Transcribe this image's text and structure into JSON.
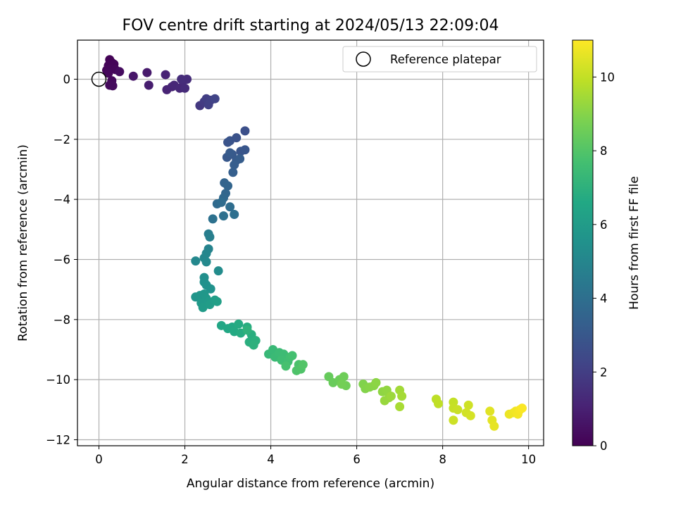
{
  "chart_data": {
    "type": "scatter",
    "title": "FOV centre drift starting at 2024/05/13 22:09:04",
    "xlabel": "Angular distance from reference (arcmin)",
    "ylabel": "Rotation from reference (arcmin)",
    "colorbar_label": "Hours from first FF file",
    "xlim": [
      -0.5,
      10.35
    ],
    "ylim": [
      -12.2,
      1.3
    ],
    "clim": [
      0,
      11
    ],
    "colormap": "viridis",
    "grid": true,
    "legend_position": "top-right",
    "xticks": [
      0,
      2,
      4,
      6,
      8,
      10
    ],
    "xtick_labels": [
      "0",
      "2",
      "4",
      "6",
      "8",
      "10"
    ],
    "yticks": [
      0,
      -2,
      -4,
      -6,
      -8,
      -10,
      -12
    ],
    "ytick_labels": [
      "0",
      "−2",
      "−4",
      "−6",
      "−8",
      "−10",
      "−12"
    ],
    "cticks": [
      0,
      2,
      4,
      6,
      8,
      10
    ],
    "ctick_labels": [
      "0",
      "2",
      "4",
      "6",
      "8",
      "10"
    ],
    "reference": {
      "name": "Reference platepar",
      "x": 0,
      "y": 0
    },
    "points": [
      [
        0.25,
        0.65,
        0.05
      ],
      [
        0.3,
        0.55,
        0.08
      ],
      [
        0.22,
        0.45,
        0.1
      ],
      [
        0.35,
        0.5,
        0.12
      ],
      [
        0.18,
        0.3,
        0.15
      ],
      [
        0.28,
        0.35,
        0.18
      ],
      [
        0.38,
        0.32,
        0.2
      ],
      [
        0.22,
        0.2,
        0.22
      ],
      [
        0.3,
        -0.05,
        0.25
      ],
      [
        0.25,
        -0.2,
        0.28
      ],
      [
        0.32,
        -0.22,
        0.3
      ],
      [
        0.48,
        0.25,
        0.35
      ],
      [
        0.8,
        0.1,
        0.7
      ],
      [
        1.12,
        0.22,
        0.8
      ],
      [
        1.16,
        -0.2,
        0.9
      ],
      [
        1.55,
        0.15,
        1.05
      ],
      [
        1.58,
        -0.35,
        1.1
      ],
      [
        1.7,
        -0.25,
        1.15
      ],
      [
        1.75,
        -0.2,
        1.2
      ],
      [
        1.88,
        -0.3,
        1.25
      ],
      [
        1.95,
        -0.05,
        1.3
      ],
      [
        2.0,
        -0.3,
        1.35
      ],
      [
        2.05,
        0.0,
        1.38
      ],
      [
        1.92,
        0.0,
        1.4
      ],
      [
        2.35,
        -0.88,
        1.8
      ],
      [
        2.45,
        -0.75,
        1.9
      ],
      [
        2.5,
        -0.65,
        2.0
      ],
      [
        2.55,
        -0.85,
        2.05
      ],
      [
        2.6,
        -0.7,
        2.1
      ],
      [
        2.7,
        -0.65,
        2.2
      ],
      [
        3.4,
        -1.72,
        2.7
      ],
      [
        3.2,
        -1.95,
        2.75
      ],
      [
        3.05,
        -2.05,
        2.8
      ],
      [
        3.0,
        -2.1,
        2.85
      ],
      [
        3.3,
        -2.4,
        2.9
      ],
      [
        3.4,
        -2.35,
        2.95
      ],
      [
        2.98,
        -2.6,
        3.0
      ],
      [
        3.1,
        -2.5,
        3.05
      ],
      [
        3.2,
        -2.7,
        3.1
      ],
      [
        3.05,
        -2.45,
        3.15
      ],
      [
        3.28,
        -2.65,
        3.2
      ],
      [
        3.15,
        -2.85,
        3.25
      ],
      [
        3.12,
        -3.1,
        3.3
      ],
      [
        2.92,
        -3.45,
        3.5
      ],
      [
        3.0,
        -3.55,
        3.55
      ],
      [
        2.95,
        -3.8,
        3.6
      ],
      [
        2.9,
        -3.95,
        3.7
      ],
      [
        2.75,
        -4.15,
        3.8
      ],
      [
        2.85,
        -4.1,
        3.85
      ],
      [
        3.05,
        -4.25,
        3.9
      ],
      [
        3.15,
        -4.5,
        4.0
      ],
      [
        2.9,
        -4.55,
        4.05
      ],
      [
        2.65,
        -4.65,
        4.1
      ],
      [
        2.55,
        -5.15,
        4.6
      ],
      [
        2.58,
        -5.25,
        4.7
      ],
      [
        2.55,
        -5.65,
        4.9
      ],
      [
        2.5,
        -5.8,
        5.0
      ],
      [
        2.45,
        -5.95,
        5.05
      ],
      [
        2.25,
        -6.05,
        5.1
      ],
      [
        2.5,
        -6.08,
        5.15
      ],
      [
        2.78,
        -6.38,
        5.3
      ],
      [
        2.45,
        -6.6,
        5.4
      ],
      [
        2.45,
        -6.75,
        5.45
      ],
      [
        2.5,
        -6.85,
        5.5
      ],
      [
        2.6,
        -6.98,
        5.55
      ],
      [
        2.25,
        -7.25,
        5.7
      ],
      [
        2.35,
        -7.2,
        5.75
      ],
      [
        2.45,
        -7.15,
        5.8
      ],
      [
        2.5,
        -7.3,
        5.85
      ],
      [
        2.38,
        -7.45,
        5.9
      ],
      [
        2.55,
        -7.4,
        5.95
      ],
      [
        2.42,
        -7.6,
        6.0
      ],
      [
        2.58,
        -7.5,
        6.05
      ],
      [
        2.7,
        -7.35,
        6.1
      ],
      [
        2.75,
        -7.4,
        6.15
      ],
      [
        2.85,
        -8.2,
        6.5
      ],
      [
        3.0,
        -8.3,
        6.55
      ],
      [
        3.1,
        -8.25,
        6.6
      ],
      [
        3.15,
        -8.4,
        6.65
      ],
      [
        3.25,
        -8.15,
        6.7
      ],
      [
        3.3,
        -8.45,
        6.75
      ],
      [
        3.45,
        -8.25,
        6.8
      ],
      [
        3.55,
        -8.5,
        6.85
      ],
      [
        3.5,
        -8.75,
        6.9
      ],
      [
        3.65,
        -8.7,
        6.95
      ],
      [
        3.6,
        -8.85,
        7.0
      ],
      [
        3.45,
        -8.35,
        7.05
      ],
      [
        3.95,
        -9.15,
        7.3
      ],
      [
        4.05,
        -9.0,
        7.35
      ],
      [
        4.1,
        -9.25,
        7.4
      ],
      [
        4.2,
        -9.1,
        7.45
      ],
      [
        4.3,
        -9.15,
        7.5
      ],
      [
        4.25,
        -9.35,
        7.55
      ],
      [
        4.4,
        -9.4,
        7.6
      ],
      [
        4.45,
        -9.25,
        7.65
      ],
      [
        4.5,
        -9.2,
        7.7
      ],
      [
        4.35,
        -9.55,
        7.75
      ],
      [
        4.65,
        -9.5,
        7.85
      ],
      [
        4.6,
        -9.7,
        7.9
      ],
      [
        4.7,
        -9.65,
        7.95
      ],
      [
        4.75,
        -9.5,
        8.0
      ],
      [
        5.35,
        -9.9,
        8.4
      ],
      [
        5.45,
        -10.1,
        8.45
      ],
      [
        5.6,
        -10.0,
        8.5
      ],
      [
        5.7,
        -9.9,
        8.55
      ],
      [
        5.75,
        -10.2,
        8.6
      ],
      [
        5.65,
        -10.15,
        8.65
      ],
      [
        6.15,
        -10.15,
        8.9
      ],
      [
        6.2,
        -10.3,
        8.95
      ],
      [
        6.3,
        -10.25,
        9.0
      ],
      [
        6.4,
        -10.2,
        9.05
      ],
      [
        6.45,
        -10.1,
        9.1
      ],
      [
        6.6,
        -10.4,
        9.15
      ],
      [
        6.7,
        -10.35,
        9.2
      ],
      [
        6.75,
        -10.6,
        9.25
      ],
      [
        6.65,
        -10.7,
        9.3
      ],
      [
        6.8,
        -10.55,
        9.35
      ],
      [
        7.0,
        -10.35,
        9.45
      ],
      [
        7.05,
        -10.55,
        9.5
      ],
      [
        7.0,
        -10.9,
        9.55
      ],
      [
        7.85,
        -10.65,
        9.9
      ],
      [
        7.9,
        -10.8,
        9.95
      ],
      [
        8.25,
        -10.75,
        10.0
      ],
      [
        8.25,
        -10.95,
        10.05
      ],
      [
        8.35,
        -11.0,
        10.1
      ],
      [
        8.25,
        -11.35,
        10.15
      ],
      [
        8.6,
        -10.85,
        10.2
      ],
      [
        8.55,
        -11.1,
        10.25
      ],
      [
        8.65,
        -11.2,
        10.3
      ],
      [
        9.1,
        -11.05,
        10.5
      ],
      [
        9.15,
        -11.35,
        10.55
      ],
      [
        9.2,
        -11.55,
        10.6
      ],
      [
        9.55,
        -11.15,
        10.7
      ],
      [
        9.65,
        -11.1,
        10.75
      ],
      [
        9.7,
        -11.05,
        10.8
      ],
      [
        9.75,
        -11.15,
        10.85
      ],
      [
        9.8,
        -11.0,
        10.9
      ],
      [
        9.85,
        -10.95,
        10.95
      ]
    ]
  }
}
